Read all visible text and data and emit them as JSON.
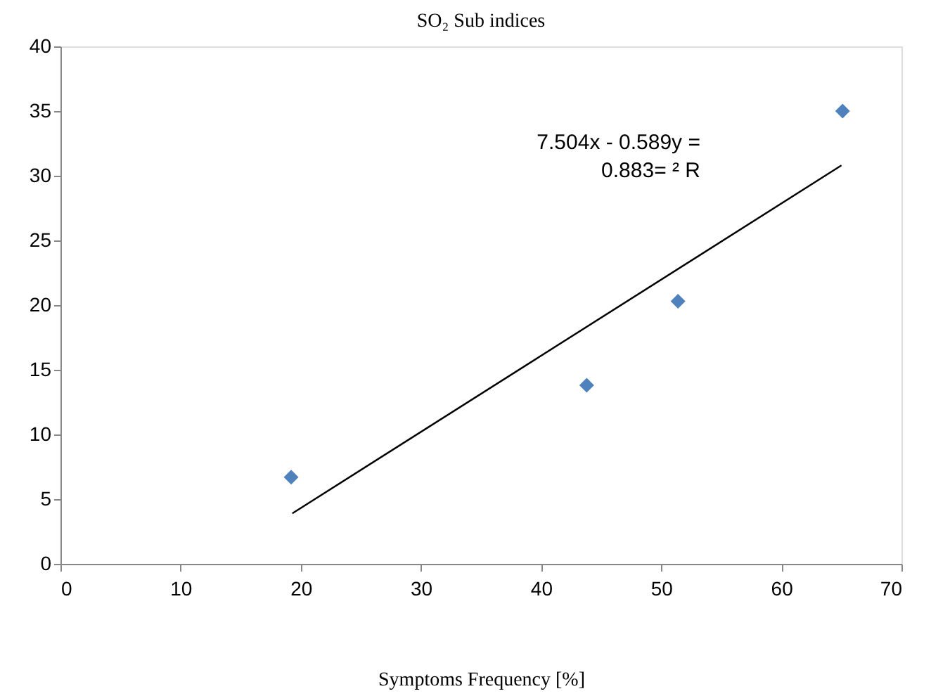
{
  "chart_data": {
    "type": "scatter",
    "title": "SO₂ Sub indices",
    "xlabel": "Symptoms Frequency [%]",
    "xlim": [
      0,
      70
    ],
    "xticks": [
      0,
      10,
      20,
      30,
      40,
      50,
      60,
      70
    ],
    "ylim": [
      0,
      40
    ],
    "yticks": [
      0,
      5,
      10,
      15,
      20,
      25,
      30,
      35,
      40
    ],
    "grid": false,
    "marker": "diamond",
    "annotations": [
      "7.504x - 0.589y =",
      "0.883= ² R"
    ],
    "series": [
      {
        "color": "#4f81bd",
        "x": [
          19.2,
          43.8,
          51.4,
          65.1
        ],
        "values": [
          6.7,
          13.8,
          20.3,
          35.0
        ]
      },
      {
        "type": "line",
        "color": "#000000",
        "marker": "none",
        "x": [
          19.3,
          65.0
        ],
        "values": [
          3.9,
          30.8
        ]
      }
    ]
  }
}
